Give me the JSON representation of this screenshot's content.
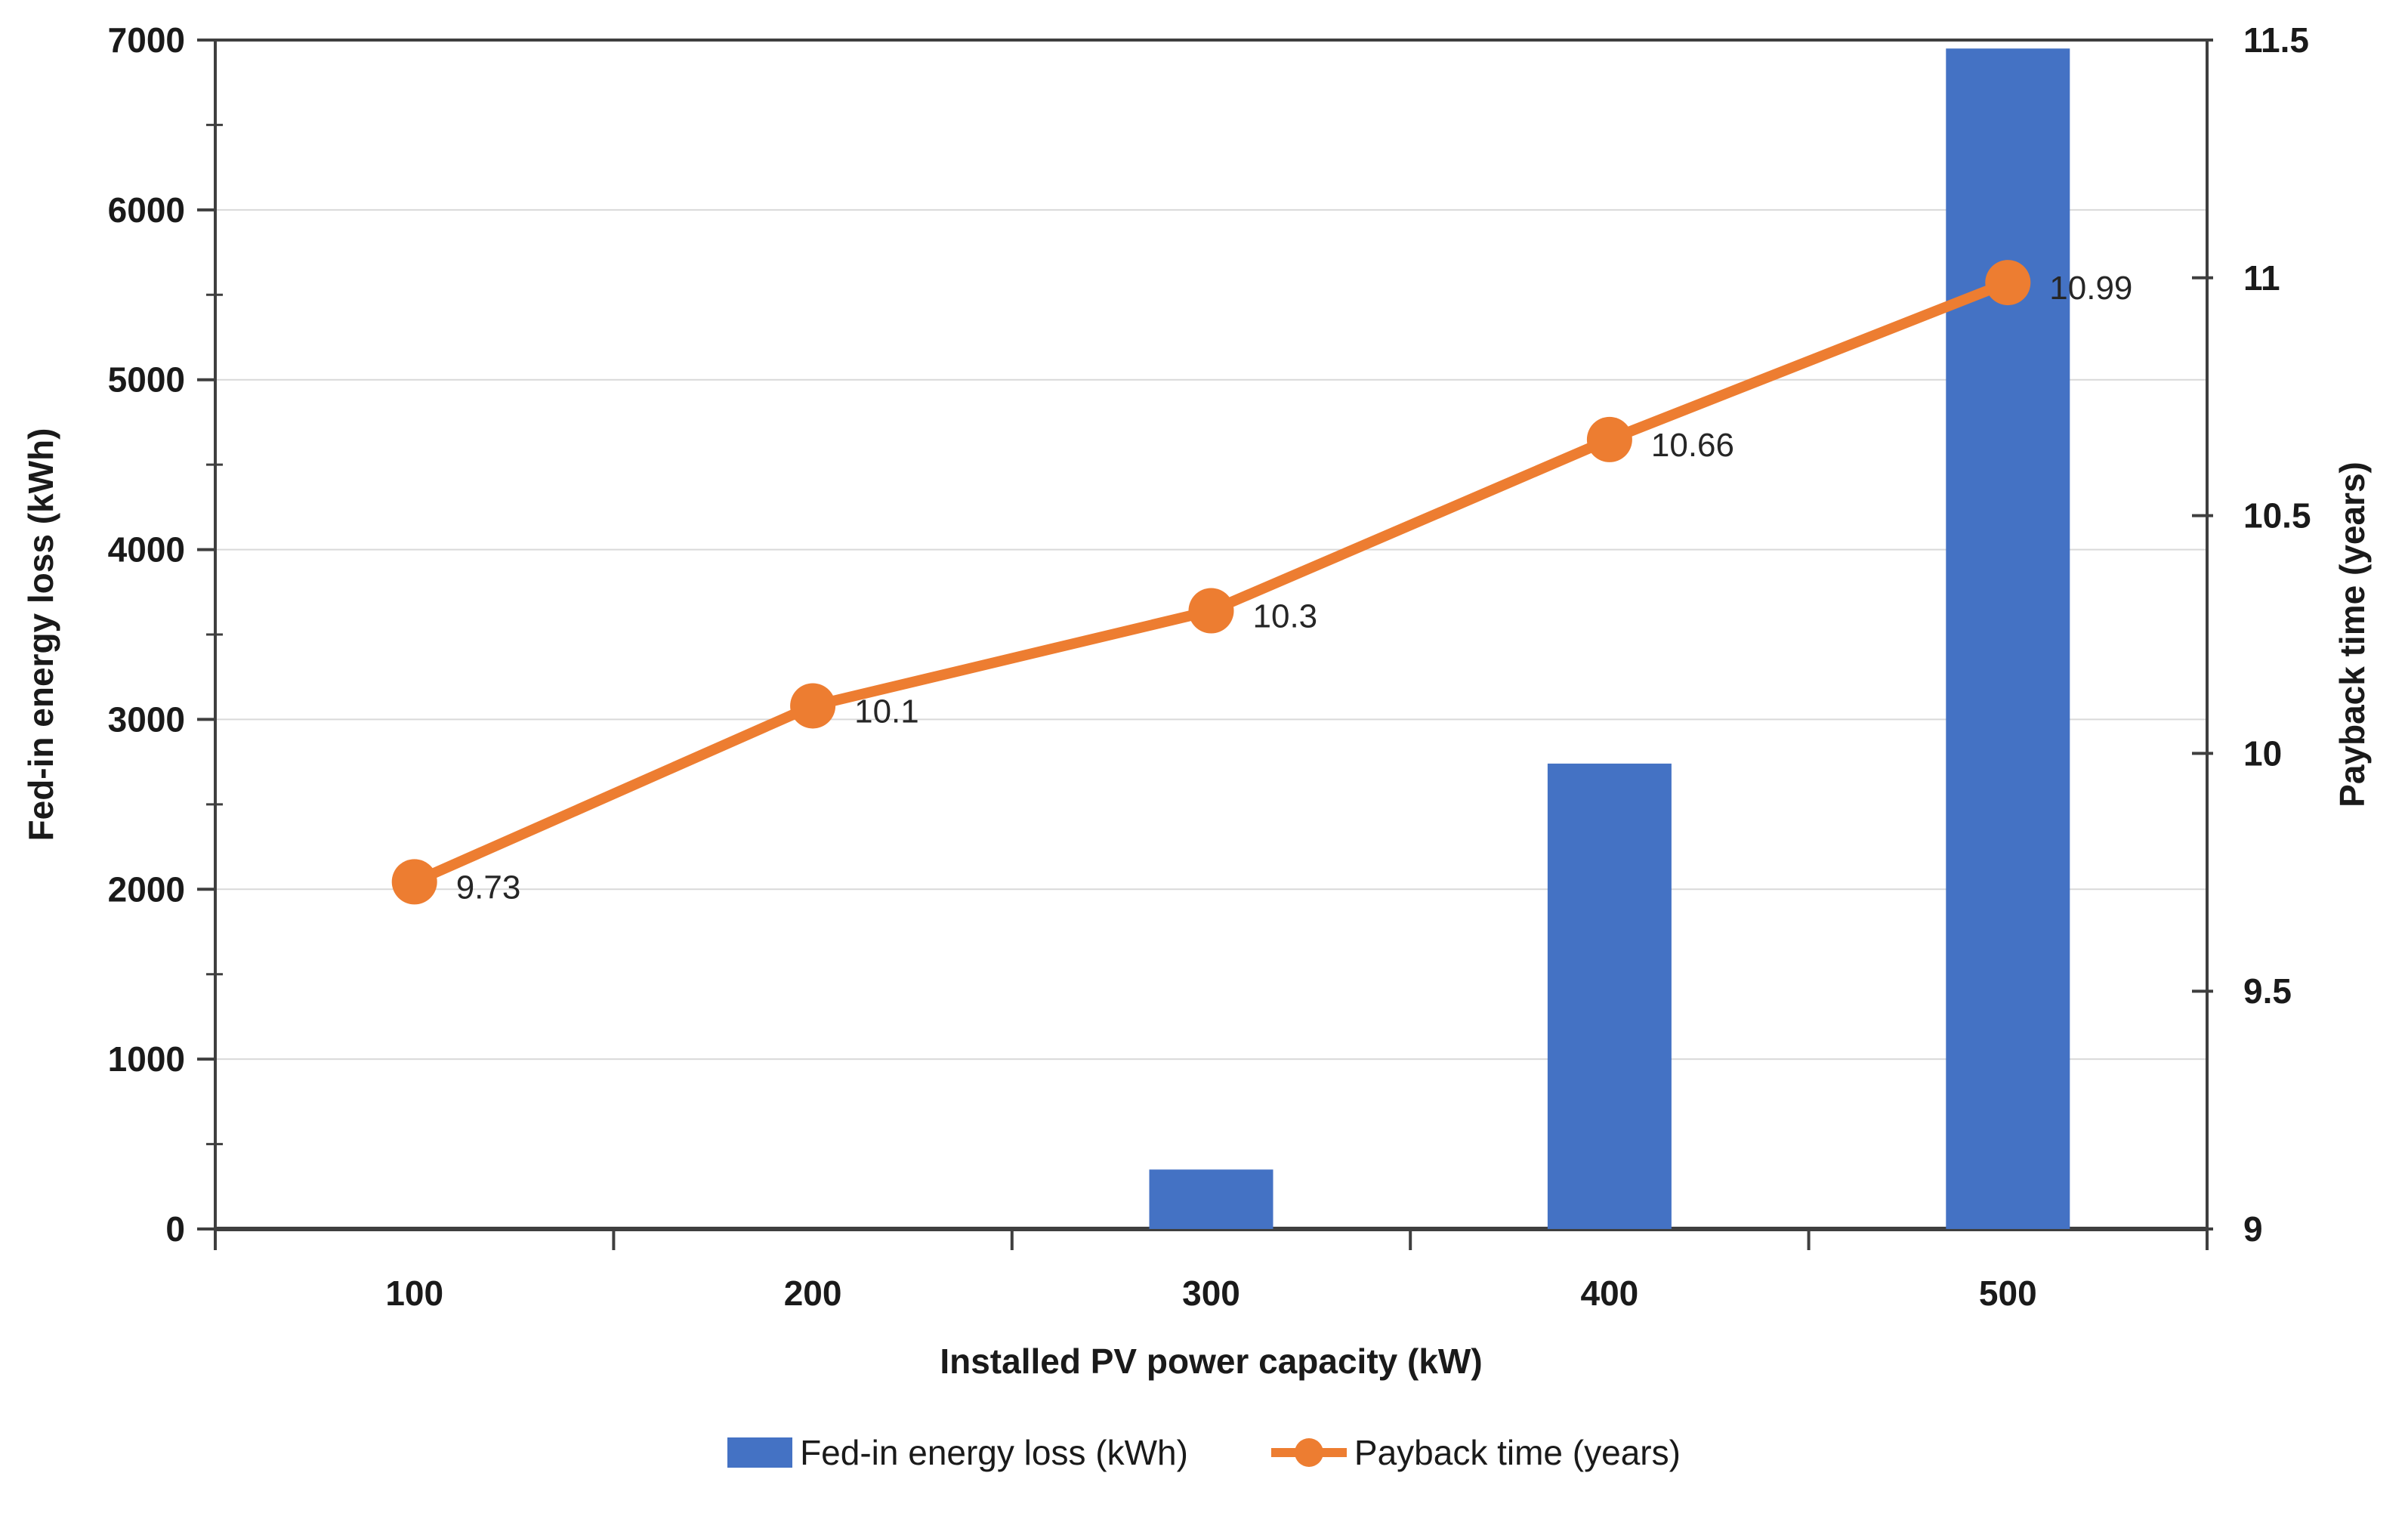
{
  "chart_data": {
    "type": "bar",
    "subtype": "combo-bar-line",
    "categories": [
      "100",
      "200",
      "300",
      "400",
      "500"
    ],
    "series": [
      {
        "name": "Fed-in energy loss (kWh)",
        "type": "bar",
        "axis": "left",
        "values": [
          0,
          0,
          350,
          2740,
          6950
        ]
      },
      {
        "name": "Payback time (years)",
        "type": "line",
        "axis": "right",
        "values": [
          9.73,
          10.1,
          10.3,
          10.66,
          10.99
        ],
        "point_labels": [
          "9.73",
          "10.1",
          "10.3",
          "10.66",
          "10.99"
        ]
      }
    ],
    "title": "",
    "xlabel": "Installed PV power capacity (kW)",
    "left_axis": {
      "title": "Fed-in energy loss (kWh)",
      "min": 0,
      "max": 7000,
      "major_step": 1000,
      "minor_step": 500,
      "tick_labels": [
        "0",
        "1000",
        "2000",
        "3000",
        "4000",
        "5000",
        "6000",
        "7000"
      ]
    },
    "right_axis": {
      "title": "Payback time (years)",
      "min": 9,
      "max": 11.5,
      "major_step": 0.5,
      "tick_labels": [
        "9",
        "9.5",
        "10",
        "10.5",
        "11",
        "11.5"
      ]
    },
    "x_tick_labels": [
      "100",
      "200",
      "300",
      "400",
      "500"
    ],
    "grid": true,
    "legend_position": "bottom",
    "colors": {
      "bar": "#4472C4",
      "line": "#ED7D31",
      "gridline": "#D9D9D9",
      "axis": "#3F3F3F",
      "tick_text": "#1A1A1A",
      "data_label_text": "#262626"
    }
  },
  "legend": {
    "items": [
      {
        "label": "Fed-in energy loss (kWh)",
        "swatch": "bar"
      },
      {
        "label": "Payback time (years)",
        "swatch": "line-marker"
      }
    ]
  }
}
